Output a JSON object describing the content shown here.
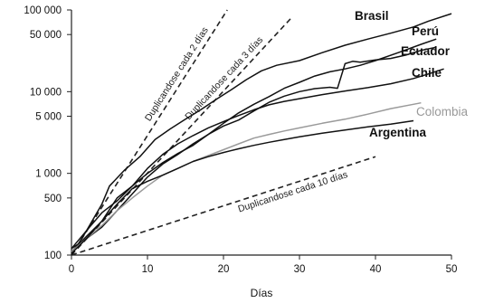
{
  "chart_data": {
    "type": "line",
    "x_axis": {
      "label": "Días",
      "range": [
        0,
        50
      ],
      "ticks": [
        "0",
        "10",
        "20",
        "30",
        "40",
        "50"
      ]
    },
    "y_axis": {
      "scale": "log",
      "range": [
        100,
        100000
      ],
      "ticks": [
        {
          "value": 100000,
          "label": "100 000"
        },
        {
          "value": 50000,
          "label": "50 000"
        },
        {
          "value": 10000,
          "label": "10 000"
        },
        {
          "value": 5000,
          "label": "5 000"
        },
        {
          "value": 1000,
          "label": "1 000"
        },
        {
          "value": 500,
          "label": "500"
        },
        {
          "value": 100,
          "label": "100"
        }
      ]
    },
    "grid": false,
    "series": [
      {
        "name": "Brasil",
        "color": "#111111",
        "points": [
          [
            0,
            100
          ],
          [
            2,
            200
          ],
          [
            4,
            420
          ],
          [
            5,
            700
          ],
          [
            7,
            1100
          ],
          [
            9,
            1600
          ],
          [
            11,
            2600
          ],
          [
            13,
            3500
          ],
          [
            15,
            4600
          ],
          [
            17,
            6000
          ],
          [
            19,
            8000
          ],
          [
            21,
            10500
          ],
          [
            23,
            14000
          ],
          [
            25,
            18000
          ],
          [
            27,
            21000
          ],
          [
            30,
            24000
          ],
          [
            33,
            30000
          ],
          [
            36,
            37000
          ],
          [
            39,
            44000
          ],
          [
            42,
            52000
          ],
          [
            45,
            62000
          ],
          [
            47,
            73000
          ],
          [
            50,
            90000
          ]
        ]
      },
      {
        "name": "Perú",
        "color": "#111111",
        "points": [
          [
            0,
            120
          ],
          [
            2,
            160
          ],
          [
            4,
            220
          ],
          [
            6,
            350
          ],
          [
            8,
            560
          ],
          [
            10,
            900
          ],
          [
            12,
            1300
          ],
          [
            14,
            1700
          ],
          [
            16,
            2300
          ],
          [
            18,
            3000
          ],
          [
            20,
            4100
          ],
          [
            22,
            5500
          ],
          [
            24,
            7000
          ],
          [
            26,
            8700
          ],
          [
            28,
            11000
          ],
          [
            30,
            13000
          ],
          [
            32,
            15500
          ],
          [
            34,
            17500
          ],
          [
            36,
            19000
          ],
          [
            38,
            21000
          ],
          [
            40,
            24000
          ],
          [
            43,
            30000
          ],
          [
            46,
            38000
          ],
          [
            48,
            44000
          ]
        ]
      },
      {
        "name": "Ecuador",
        "color": "#111111",
        "points": [
          [
            0,
            110
          ],
          [
            2,
            170
          ],
          [
            4,
            260
          ],
          [
            6,
            500
          ],
          [
            8,
            700
          ],
          [
            10,
            1000
          ],
          [
            12,
            1350
          ],
          [
            14,
            1750
          ],
          [
            16,
            2200
          ],
          [
            18,
            3000
          ],
          [
            20,
            3800
          ],
          [
            22,
            4500
          ],
          [
            24,
            5800
          ],
          [
            26,
            7400
          ],
          [
            28,
            8800
          ],
          [
            30,
            10000
          ],
          [
            32,
            10900
          ],
          [
            34,
            11300
          ],
          [
            35,
            11000
          ],
          [
            36,
            22000
          ],
          [
            37,
            23500
          ],
          [
            38,
            23000
          ],
          [
            40,
            24500
          ],
          [
            42,
            25500
          ],
          [
            44,
            28000
          ],
          [
            46,
            32000
          ],
          [
            48,
            35000
          ]
        ]
      },
      {
        "name": "Chile",
        "color": "#111111",
        "points": [
          [
            0,
            120
          ],
          [
            2,
            200
          ],
          [
            4,
            330
          ],
          [
            6,
            460
          ],
          [
            8,
            700
          ],
          [
            10,
            1150
          ],
          [
            12,
            1700
          ],
          [
            14,
            2300
          ],
          [
            16,
            2900
          ],
          [
            18,
            3600
          ],
          [
            20,
            4300
          ],
          [
            22,
            5100
          ],
          [
            24,
            6000
          ],
          [
            26,
            6900
          ],
          [
            28,
            7600
          ],
          [
            30,
            8200
          ],
          [
            33,
            9200
          ],
          [
            36,
            10200
          ],
          [
            39,
            11200
          ],
          [
            42,
            12500
          ],
          [
            45,
            14500
          ],
          [
            47,
            16500
          ],
          [
            49,
            19000
          ]
        ]
      },
      {
        "name": "Colombia",
        "color": "#9a9a9a",
        "points": [
          [
            0,
            110
          ],
          [
            2,
            160
          ],
          [
            4,
            230
          ],
          [
            6,
            350
          ],
          [
            8,
            500
          ],
          [
            10,
            700
          ],
          [
            12,
            950
          ],
          [
            14,
            1150
          ],
          [
            16,
            1400
          ],
          [
            18,
            1650
          ],
          [
            20,
            1950
          ],
          [
            22,
            2300
          ],
          [
            24,
            2700
          ],
          [
            26,
            3000
          ],
          [
            28,
            3300
          ],
          [
            30,
            3600
          ],
          [
            33,
            4100
          ],
          [
            36,
            4600
          ],
          [
            39,
            5300
          ],
          [
            42,
            6200
          ],
          [
            45,
            7000
          ],
          [
            46,
            7300
          ]
        ]
      },
      {
        "name": "Argentina",
        "color": "#111111",
        "points": [
          [
            0,
            105
          ],
          [
            2,
            160
          ],
          [
            4,
            260
          ],
          [
            6,
            420
          ],
          [
            8,
            650
          ],
          [
            10,
            800
          ],
          [
            12,
            950
          ],
          [
            14,
            1150
          ],
          [
            16,
            1400
          ],
          [
            18,
            1600
          ],
          [
            20,
            1800
          ],
          [
            22,
            2000
          ],
          [
            24,
            2200
          ],
          [
            26,
            2400
          ],
          [
            28,
            2600
          ],
          [
            30,
            2800
          ],
          [
            33,
            3100
          ],
          [
            36,
            3400
          ],
          [
            39,
            3700
          ],
          [
            42,
            4000
          ],
          [
            45,
            4400
          ]
        ]
      }
    ],
    "reference_lines": [
      {
        "label": "Duplicandose cada 2 días",
        "doubling_days": 2,
        "x_end": 20.5
      },
      {
        "label": "Duplicandose cada 3 días",
        "doubling_days": 3,
        "x_end": 29
      },
      {
        "label": "Duplicandose cada 10 días",
        "doubling_days": 10,
        "x_end": 40
      }
    ],
    "legend": "series labels placed at line ends (right)"
  }
}
